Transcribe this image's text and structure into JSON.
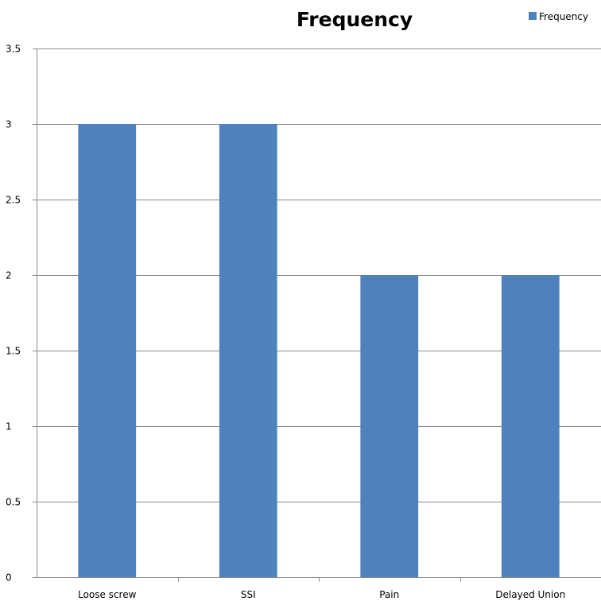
{
  "chart_data": {
    "type": "bar",
    "title": "Frequency",
    "categories": [
      "Loose screw",
      "SSI",
      "Pain",
      "Delayed Union"
    ],
    "series": [
      {
        "name": "Frequency",
        "values": [
          3,
          3,
          2,
          2
        ],
        "color": "#4f81bd"
      }
    ],
    "ylim": [
      0,
      3.5
    ],
    "yticks": [
      "0",
      "0.5",
      "1",
      "1.5",
      "2",
      "2.5",
      "3",
      "3.5"
    ],
    "xlabel": "",
    "ylabel": "",
    "grid": true,
    "legend_position": "top-right"
  }
}
